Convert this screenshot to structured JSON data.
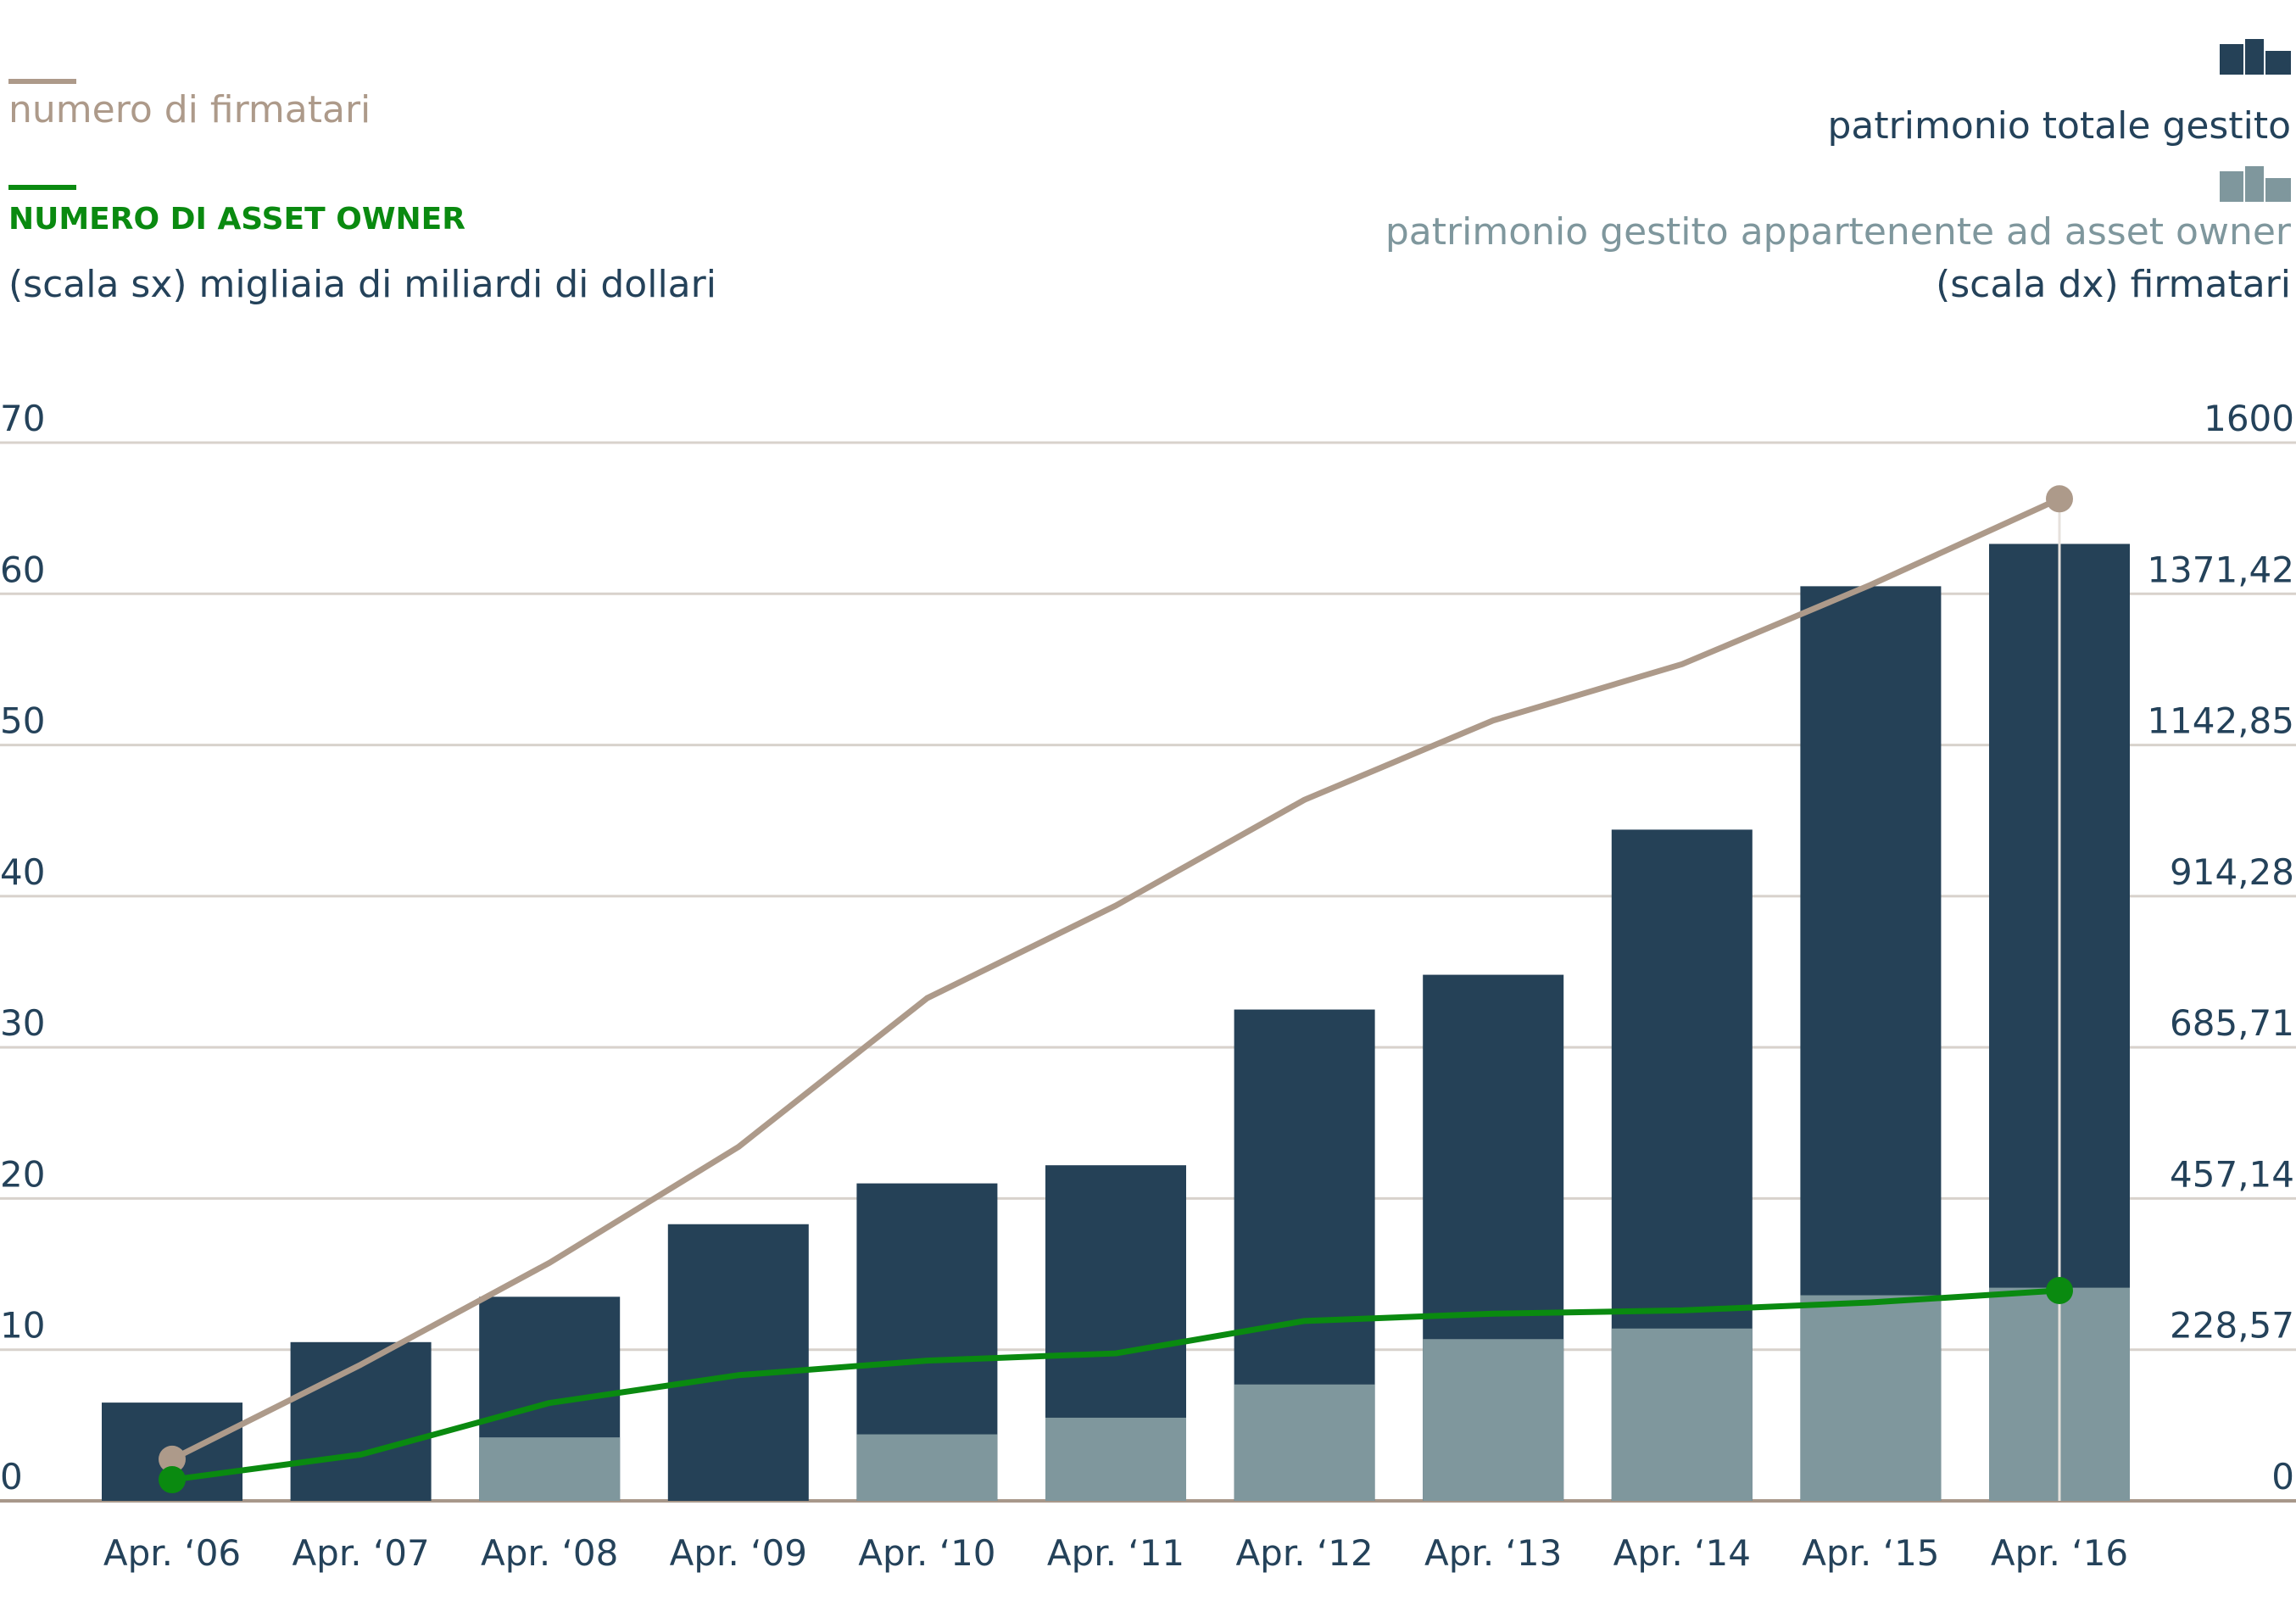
{
  "chart_data": {
    "type": "bar",
    "categories": [
      "Apr. ‘06",
      "Apr. ‘07",
      "Apr. ‘08",
      "Apr. ‘09",
      "Apr. ‘10",
      "Apr. ‘11",
      "Apr. ‘12",
      "Apr. ‘13",
      "Apr. ‘14",
      "Apr. ‘15",
      "Apr. ‘16"
    ],
    "bar_series": [
      {
        "name": "patrimonio totale gestito",
        "color": "#254157",
        "values": [
          6.5,
          10.5,
          13.5,
          18.3,
          21,
          22.2,
          32.5,
          34.8,
          44.4,
          60.5,
          63.3
        ]
      },
      {
        "name": "patrimonio gestito appartenente ad asset owner",
        "color": "#7f979d",
        "values": [
          null,
          null,
          4.2,
          null,
          4.4,
          5.5,
          7.7,
          10.7,
          11.4,
          13.6,
          14.1
        ]
      }
    ],
    "line_series": [
      {
        "name": "numero di firmatari",
        "color": "#ad9a8a",
        "axis": "right",
        "values": [
          63,
          206,
          360,
          535,
          760,
          900,
          1060,
          1180,
          1265,
          1385,
          1515
        ],
        "markers": [
          0,
          10
        ]
      },
      {
        "name": "NUMERO DI ASSET OWNER",
        "color": "#0a8a10",
        "axis": "right",
        "values": [
          32,
          70,
          148,
          190,
          212,
          223,
          272,
          283,
          288,
          300,
          318
        ],
        "markers": [
          0,
          10
        ]
      }
    ],
    "y_left": {
      "label": "(scala sx) migliaia di miliardi di dollari",
      "ticks": [
        "0",
        "10",
        "20",
        "30",
        "40",
        "50",
        "60",
        "70"
      ],
      "lim": [
        0,
        70
      ]
    },
    "y_right": {
      "label": "(scala dx) firmatari",
      "ticks": [
        "0",
        "228,57",
        "457,14",
        "685,71",
        "914,28",
        "1142,85",
        "1371,42",
        "1600"
      ],
      "lim": [
        0,
        1600
      ]
    },
    "grid": true,
    "legend_left_position": "top-left",
    "legend_right_position": "top-right"
  },
  "colors": {
    "grid": "#d8d2cc",
    "axis": "#a8988a",
    "tick_text": "#24425a",
    "vertical_line": "#e6e1dc"
  }
}
